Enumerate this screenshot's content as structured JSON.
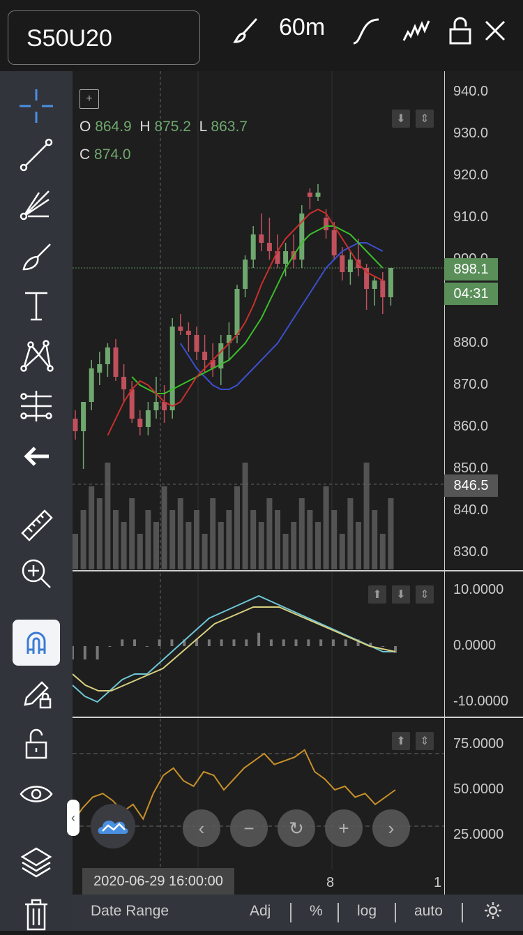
{
  "header": {
    "symbol": "S50U20",
    "interval": "60m",
    "icons": [
      "brush-icon",
      "line-style-icon",
      "indicators-icon",
      "lock-icon",
      "close-icon"
    ]
  },
  "sidebar": {
    "tools": [
      "crosshair-icon",
      "trend-line-icon",
      "gann-fan-icon",
      "brush-icon",
      "text-icon",
      "pattern-icon",
      "prediction-icon",
      "back-arrow-icon",
      "ruler-icon",
      "zoom-in-icon",
      "magnet-icon",
      "pencil-lock-icon",
      "unlock-icon",
      "eye-icon",
      "layers-icon",
      "trash-icon"
    ]
  },
  "ohlc": {
    "o_label": "O",
    "o": "864.9",
    "h_label": "H",
    "h": "875.2",
    "l_label": "L",
    "l": "863.7",
    "c_label": "C",
    "c": "874.0"
  },
  "price_axis": [
    "940.0",
    "930.0",
    "920.0",
    "910.0",
    "900.0",
    "890.0",
    "880.0",
    "870.0",
    "860.0",
    "850.0",
    "840.0",
    "830.0"
  ],
  "badges": {
    "last_price": "898.1",
    "countdown": "04:31",
    "cursor_price": "846.5"
  },
  "macd_axis": [
    "10.0000",
    "0.0000",
    "-10.0000"
  ],
  "rsi_axis": [
    "75.0000",
    "50.0000",
    "25.0000"
  ],
  "time_axis": {
    "cursor_time": "2020-06-29 16:00:00",
    "labels": [
      "8",
      "1"
    ]
  },
  "nav_buttons": [
    "scroll-left-icon",
    "zoom-out-icon",
    "reset-icon",
    "zoom-in-icon",
    "scroll-right-icon"
  ],
  "bottom_bar": {
    "date_range": "Date Range",
    "adj": "Adj",
    "percent": "%",
    "log": "log",
    "auto": "auto",
    "settings_icon": "gear-icon"
  },
  "colors": {
    "up": "#6fa86f",
    "down": "#c0505c",
    "ma_red": "#c8302c",
    "ma_green": "#3bbf2a",
    "ma_blue": "#3b4fd0",
    "macd": "#6ec6d6",
    "signal": "#d8d080",
    "rsi": "#c8902a",
    "badge_green": "#5a8f5a",
    "badge_gray": "#555555"
  },
  "chart_data": {
    "type": "candlestick",
    "candles": [
      [
        862,
        864,
        857,
        859
      ],
      [
        859,
        866,
        850,
        866
      ],
      [
        866,
        876,
        864,
        874
      ],
      [
        873,
        878,
        870,
        875
      ],
      [
        875,
        880,
        872,
        879
      ],
      [
        879,
        881,
        871,
        872
      ],
      [
        872,
        875,
        866,
        869
      ],
      [
        869,
        871,
        861,
        862
      ],
      [
        862,
        864,
        858,
        860
      ],
      [
        860,
        866,
        858,
        864
      ],
      [
        864,
        872,
        862,
        866
      ],
      [
        866,
        870,
        861,
        864
      ],
      [
        864,
        886,
        862,
        884
      ],
      [
        884,
        887,
        882,
        883
      ],
      [
        883,
        885,
        878,
        882
      ],
      [
        882,
        884,
        876,
        878
      ],
      [
        878,
        882,
        873,
        876
      ],
      [
        876,
        880,
        872,
        874
      ],
      [
        874,
        882,
        870,
        880
      ],
      [
        880,
        885,
        876,
        882
      ],
      [
        882,
        894,
        880,
        893
      ],
      [
        893,
        901,
        891,
        900
      ],
      [
        900,
        908,
        898,
        906
      ],
      [
        906,
        911,
        902,
        904
      ],
      [
        904,
        910,
        900,
        902
      ],
      [
        902,
        906,
        898,
        899
      ],
      [
        899,
        904,
        896,
        902
      ],
      [
        902,
        906,
        898,
        900
      ],
      [
        900,
        913,
        898,
        911
      ],
      [
        916,
        917,
        912,
        915
      ],
      [
        915,
        918,
        914,
        916
      ],
      [
        910,
        912,
        905,
        907
      ],
      [
        907,
        909,
        900,
        901
      ],
      [
        901,
        903,
        895,
        897
      ],
      [
        897,
        902,
        894,
        900
      ],
      [
        900,
        905,
        896,
        898
      ],
      [
        898,
        899,
        888,
        893
      ],
      [
        893,
        896,
        889,
        895
      ],
      [
        895,
        897,
        887,
        891
      ],
      [
        891,
        898,
        889,
        898
      ]
    ],
    "ma_red": [
      858,
      862,
      866,
      869,
      871,
      870,
      868,
      866,
      865,
      866,
      869,
      872,
      874,
      876,
      878,
      880,
      882,
      885,
      889,
      894,
      898,
      902,
      905,
      907,
      909,
      911,
      912,
      911,
      908,
      905,
      902,
      899,
      897,
      896,
      895
    ],
    "ma_green": [
      872,
      870,
      869,
      868,
      868,
      869,
      870,
      871,
      872,
      873,
      874,
      875,
      876,
      878,
      880,
      883,
      886,
      890,
      894,
      898,
      901,
      904,
      906,
      907,
      908,
      908,
      907,
      906,
      904,
      902,
      900,
      898
    ],
    "ma_blue": [
      880,
      877,
      874,
      872,
      870,
      869,
      869,
      870,
      872,
      874,
      876,
      878,
      880,
      883,
      886,
      889,
      892,
      895,
      898,
      900,
      902,
      903,
      904,
      904,
      903,
      902
    ],
    "volume": [
      0.3,
      0.5,
      0.7,
      0.6,
      0.9,
      0.5,
      0.4,
      0.6,
      0.3,
      0.5,
      0.4,
      0.7,
      0.5,
      0.6,
      0.4,
      0.5,
      0.3,
      0.6,
      0.4,
      0.5,
      0.7,
      0.9,
      0.5,
      0.4,
      0.6,
      0.5,
      0.3,
      0.4,
      0.6,
      0.5,
      0.4,
      0.7,
      0.5,
      0.3,
      0.6,
      0.4,
      0.9,
      0.5,
      0.3,
      0.6
    ],
    "macd_line": [
      -7,
      -9,
      -10,
      -8,
      -6,
      -5,
      -5,
      -3,
      -1,
      1,
      3,
      5,
      6,
      7,
      8,
      9,
      8,
      7,
      6,
      5,
      4,
      3,
      2,
      1,
      0,
      -1,
      -1
    ],
    "signal_line": [
      -5,
      -7,
      -8,
      -8,
      -7,
      -6,
      -5,
      -4,
      -2,
      0,
      2,
      4,
      5,
      6,
      7,
      7,
      7,
      6,
      5,
      4,
      3,
      2,
      1,
      0,
      -0.5,
      -1
    ],
    "rsi_line": [
      32,
      40,
      46,
      48,
      44,
      38,
      42,
      34,
      48,
      58,
      62,
      55,
      52,
      60,
      58,
      50,
      56,
      62,
      66,
      70,
      64,
      66,
      68,
      72,
      60,
      56,
      50,
      52,
      46,
      48,
      42,
      46,
      50
    ]
  }
}
